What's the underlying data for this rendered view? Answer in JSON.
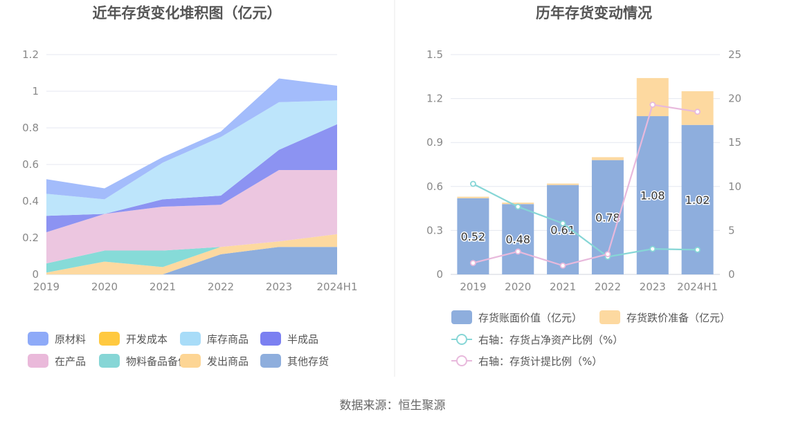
{
  "footer": {
    "source": "数据来源：恒生聚源"
  },
  "chart_data": [
    {
      "type": "area",
      "stacked": true,
      "title": "近年存货变化堆积图（亿元）",
      "categories": [
        "2019",
        "2020",
        "2021",
        "2022",
        "2023",
        "2024H1"
      ],
      "ylim": [
        0,
        1.2
      ],
      "yticks": [
        "0",
        "0.2",
        "0.4",
        "0.6",
        "0.8",
        "1",
        "1.2"
      ],
      "grid": true,
      "legend_position": "bottom",
      "series": [
        {
          "name": "其他存货",
          "color": "#8eaedd",
          "values": [
            0,
            0,
            0,
            0.11,
            0.15,
            0.15
          ]
        },
        {
          "name": "发出商品",
          "color": "#fdd9a0",
          "values": [
            0.01,
            0.07,
            0.04,
            0.04,
            0.03,
            0.07
          ]
        },
        {
          "name": "物料备品备件",
          "color": "#86dbd8",
          "values": [
            0.05,
            0.06,
            0.09,
            0.0,
            0.0,
            0.0
          ]
        },
        {
          "name": "在产品",
          "color": "#ecc6e0",
          "values": [
            0.17,
            0.2,
            0.24,
            0.23,
            0.39,
            0.35
          ]
        },
        {
          "name": "半成品",
          "color": "#8c93f2",
          "values": [
            0.09,
            0.0,
            0.04,
            0.05,
            0.11,
            0.25
          ]
        },
        {
          "name": "开发成本",
          "color": "#ffc940",
          "values": [
            0,
            0,
            0,
            0,
            0,
            0
          ]
        },
        {
          "name": "库存商品",
          "color": "#bde5fb",
          "values": [
            0.12,
            0.08,
            0.2,
            0.32,
            0.26,
            0.13
          ]
        },
        {
          "name": "原材料",
          "color": "#a3bcfb",
          "values": [
            0.08,
            0.06,
            0.03,
            0.03,
            0.13,
            0.08
          ]
        }
      ],
      "legend": [
        {
          "name": "原材料",
          "color": "#8eaaf8"
        },
        {
          "name": "开发成本",
          "color": "#ffc940"
        },
        {
          "name": "库存商品",
          "color": "#a8dcf8"
        },
        {
          "name": "半成品",
          "color": "#7b80f1"
        },
        {
          "name": "在产品",
          "color": "#eab9da"
        },
        {
          "name": "物料备品备件",
          "color": "#86d6d6"
        },
        {
          "name": "发出商品",
          "color": "#fdd594"
        },
        {
          "name": "其他存货",
          "color": "#8eaedd"
        }
      ]
    },
    {
      "type": "bar",
      "stacked": true,
      "title": "历年存货变动情况",
      "categories": [
        "2019",
        "2020",
        "2021",
        "2022",
        "2023",
        "2024H1"
      ],
      "ylim": [
        0,
        1.5
      ],
      "yticks": [
        "0",
        "0.3",
        "0.6",
        "0.9",
        "1.2",
        "1.5"
      ],
      "y2lim": [
        0,
        25
      ],
      "y2ticks": [
        "0",
        "5",
        "10",
        "15",
        "20",
        "25"
      ],
      "grid": true,
      "legend_position": "bottom",
      "bars": [
        {
          "name": "存货账面价值（亿元）",
          "color": "#8eaedd",
          "values": [
            0.52,
            0.48,
            0.61,
            0.78,
            1.08,
            1.02
          ],
          "labels": [
            "0.52",
            "0.48",
            "0.61",
            "0.78",
            "1.08",
            "1.02"
          ]
        },
        {
          "name": "存货跌价准备（亿元）",
          "color": "#fdd9a0",
          "values": [
            0.01,
            0.01,
            0.01,
            0.02,
            0.26,
            0.23
          ]
        }
      ],
      "lines": [
        {
          "name": "右轴：存货占净资产比例（%）",
          "color": "#86d6d6",
          "axis": "right",
          "values": [
            10.3,
            7.7,
            5.8,
            2.0,
            2.9,
            2.8
          ]
        },
        {
          "name": "右轴：存货计提比例（%）",
          "color": "#e8b9dc",
          "axis": "right",
          "values": [
            1.3,
            2.6,
            1.0,
            2.3,
            19.3,
            18.5
          ]
        }
      ]
    }
  ]
}
